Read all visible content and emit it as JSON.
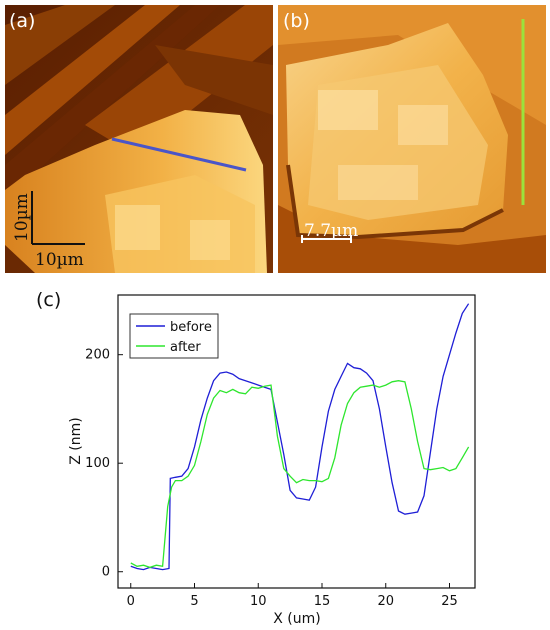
{
  "panel_a": {
    "label": "(a)",
    "scale_vertical": "10µm",
    "scale_horizontal": "10µm",
    "profile_line_color": "#4a55c8"
  },
  "panel_b": {
    "label": "(b)",
    "scale_label": "7.7µm",
    "profile_line_color": "#9be23c"
  },
  "chart_data": {
    "label": "(c)",
    "type": "line",
    "xlabel": "X (um)",
    "ylabel": "Z (nm)",
    "xlim": [
      -1,
      27
    ],
    "ylim": [
      -15,
      255
    ],
    "xticks": [
      0,
      5,
      10,
      15,
      20,
      25
    ],
    "yticks": [
      0,
      100,
      200
    ],
    "legend_position": "top-left",
    "series": [
      {
        "name": "before",
        "color": "#1f1fd6",
        "x": [
          0,
          0.5,
          1,
          1.5,
          2,
          2.5,
          3,
          3.1,
          3.5,
          4,
          4.5,
          5,
          5.5,
          6,
          6.5,
          7,
          7.5,
          8,
          8.5,
          9,
          9.5,
          10,
          10.5,
          11,
          11.3,
          12,
          12.5,
          13,
          13.5,
          14,
          14.5,
          15,
          15.5,
          16,
          16.5,
          17,
          17.5,
          18,
          18.5,
          19,
          19.5,
          20,
          20.5,
          21,
          21.5,
          22,
          22.5,
          23,
          23.5,
          24,
          24.5,
          25,
          25.5,
          26,
          26.5
        ],
        "y": [
          5,
          3,
          2,
          4,
          3,
          2,
          3,
          86,
          87,
          88,
          95,
          115,
          140,
          160,
          176,
          183,
          184,
          182,
          178,
          176,
          174,
          172,
          170,
          168,
          150,
          108,
          75,
          68,
          67,
          66,
          78,
          115,
          148,
          168,
          180,
          192,
          188,
          187,
          183,
          176,
          150,
          115,
          82,
          56,
          53,
          54,
          55,
          70,
          110,
          150,
          180,
          200,
          220,
          238,
          247
        ]
      },
      {
        "name": "after",
        "color": "#2ee62e",
        "x": [
          0,
          0.5,
          1,
          1.5,
          2,
          2.5,
          2.9,
          3.2,
          3.5,
          4,
          4.5,
          5,
          5.5,
          6,
          6.5,
          7,
          7.5,
          8,
          8.5,
          9,
          9.5,
          10,
          10.5,
          11,
          11.5,
          12,
          12.5,
          13,
          13.5,
          14,
          14.5,
          15,
          15.5,
          16,
          16.5,
          17,
          17.5,
          18,
          18.5,
          19,
          19.5,
          20,
          20.5,
          21,
          21.5,
          22,
          22.5,
          23,
          23.5,
          24,
          24.5,
          25,
          25.5,
          26,
          26.5
        ],
        "y": [
          8,
          5,
          6,
          4,
          6,
          5,
          60,
          78,
          84,
          84,
          88,
          98,
          120,
          145,
          160,
          167,
          165,
          168,
          165,
          164,
          170,
          169,
          171,
          172,
          125,
          95,
          88,
          82,
          85,
          84,
          84,
          83,
          86,
          105,
          135,
          155,
          165,
          170,
          171,
          172,
          170,
          172,
          175,
          176,
          175,
          150,
          120,
          95,
          94,
          95,
          96,
          93,
          95,
          105,
          115
        ]
      }
    ]
  }
}
